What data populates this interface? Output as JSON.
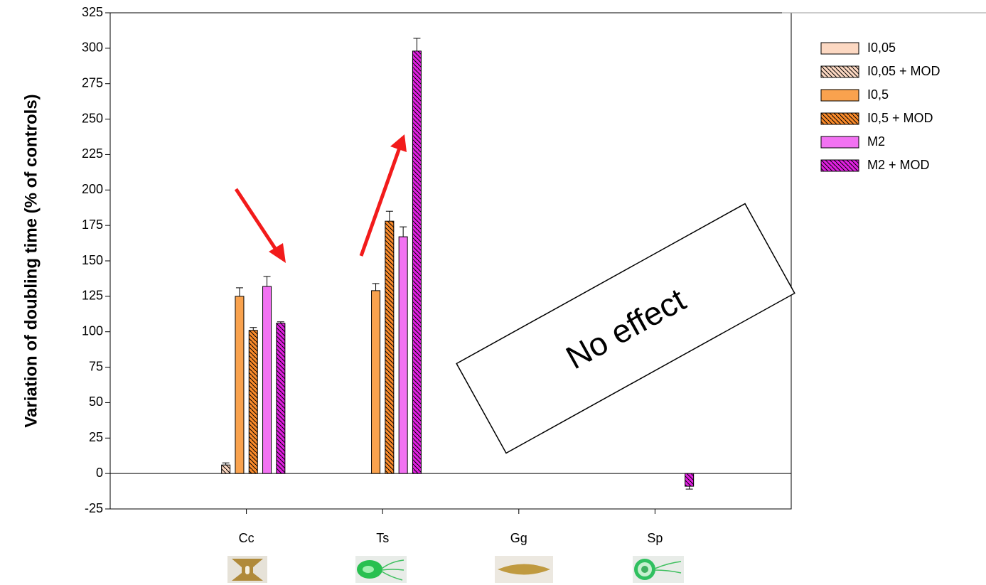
{
  "chart_data": {
    "type": "bar",
    "y_label": "Variation of doubling time (% of controls)",
    "categories": [
      "Cc",
      "Ts",
      "Gg",
      "Sp"
    ],
    "series": [
      {
        "name": "I0,05",
        "color": "#fcd8c2",
        "hatch": false,
        "values": [
          null,
          null,
          null,
          null
        ],
        "errors": [
          null,
          null,
          null,
          null
        ]
      },
      {
        "name": "I0,05 + MOD",
        "color": "#fcd8c2",
        "hatch": true,
        "values": [
          6,
          null,
          null,
          null
        ],
        "errors": [
          1.5,
          null,
          null,
          null
        ]
      },
      {
        "name": "I0,5",
        "color": "#f9a24e",
        "hatch": false,
        "values": [
          125,
          129,
          null,
          null
        ],
        "errors": [
          6,
          5,
          null,
          null
        ]
      },
      {
        "name": "I0,5 + MOD",
        "color": "#f98a2a",
        "hatch": true,
        "values": [
          101,
          178,
          null,
          null
        ],
        "errors": [
          2,
          7,
          null,
          null
        ]
      },
      {
        "name": "M2",
        "color": "#f272f2",
        "hatch": false,
        "values": [
          132,
          167,
          null,
          null
        ],
        "errors": [
          7,
          7,
          null,
          null
        ]
      },
      {
        "name": "M2 + MOD",
        "color": "#e020e0",
        "hatch": true,
        "values": [
          106,
          298,
          null,
          -9
        ],
        "errors": [
          1,
          9,
          null,
          2
        ]
      }
    ],
    "ylim": [
      -25,
      325
    ],
    "yticks": [
      -25,
      0,
      25,
      50,
      75,
      100,
      125,
      150,
      175,
      200,
      225,
      250,
      275,
      300,
      325
    ],
    "annotation": "No effect"
  }
}
